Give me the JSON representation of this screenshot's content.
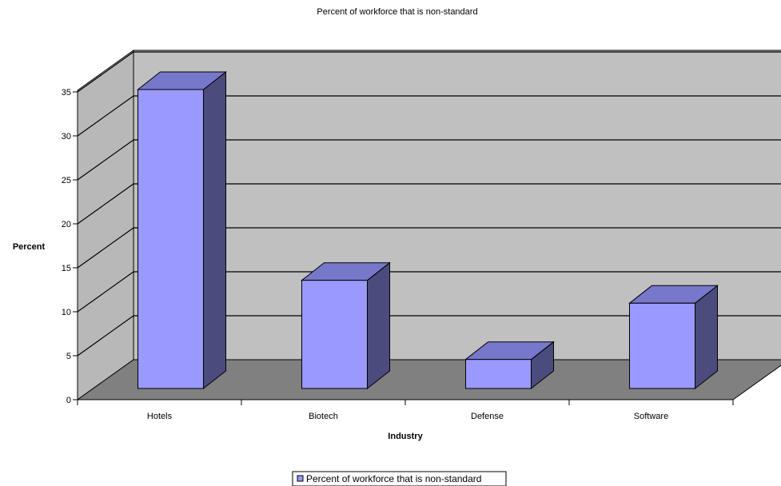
{
  "chart_data": {
    "type": "bar",
    "title": "Percent of workforce that is non-standard",
    "xlabel": "Industry",
    "ylabel": "Percent",
    "categories": [
      "Hotels",
      "Biotech",
      "Defense",
      "Software"
    ],
    "series": [
      {
        "name": "Percent of workforce that is non-standard",
        "values": [
          34,
          12.3,
          3.3,
          9.7
        ]
      }
    ],
    "ylim": [
      0,
      35
    ],
    "yticks": [
      "0",
      "5",
      "10",
      "15",
      "20",
      "25",
      "30",
      "35"
    ],
    "grid": true,
    "legend": "bottom",
    "three_d": true,
    "colors": {
      "bar_front": "#9999ff",
      "bar_top": "#7777cc",
      "bar_side": "#4b4b7d",
      "back_wall": "#c0c0c0",
      "side_wall": "#b8b8b8",
      "floor": "#808080",
      "gridline": "#000000"
    }
  }
}
